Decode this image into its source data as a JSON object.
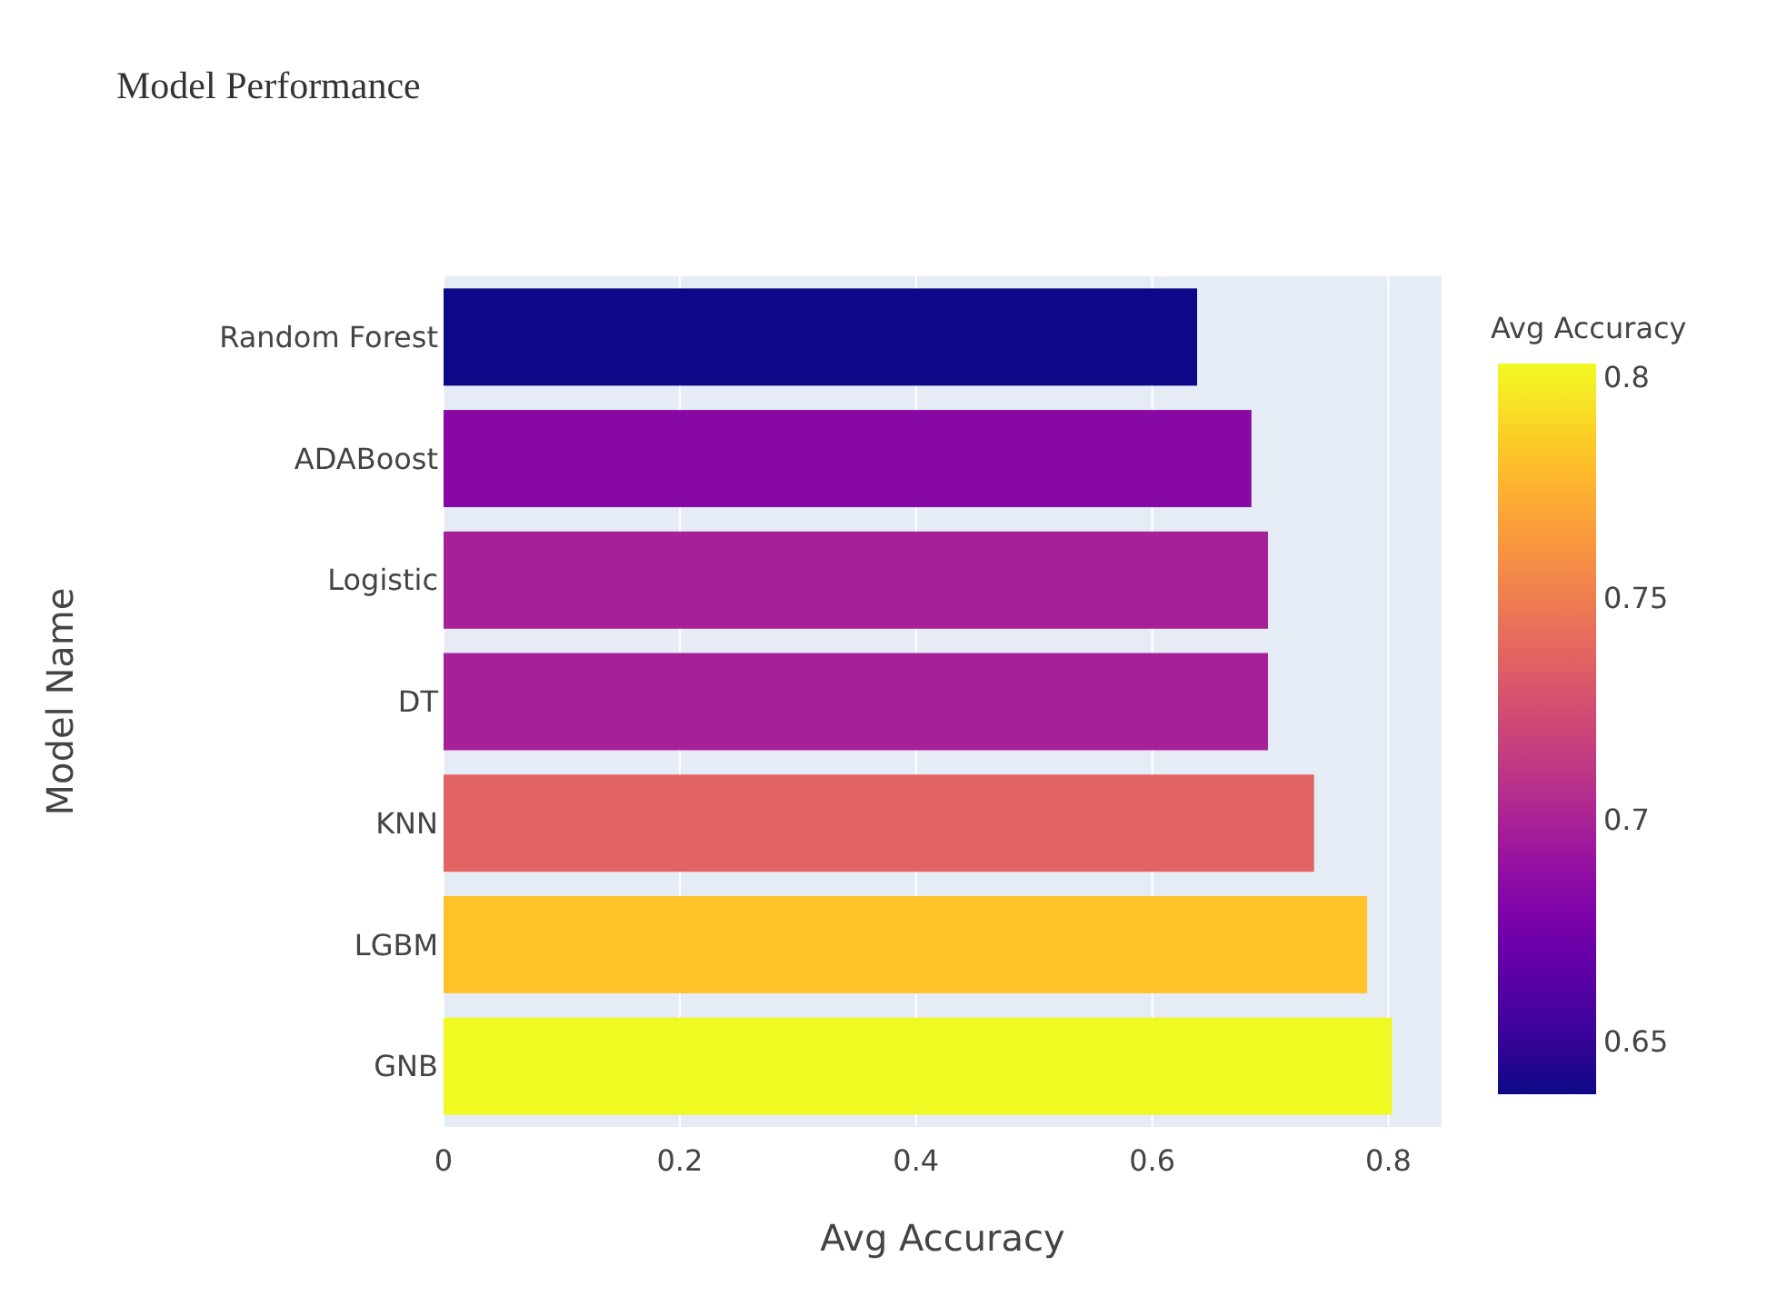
{
  "chart_data": {
    "type": "bar",
    "orientation": "horizontal",
    "title": "Model Performance",
    "xlabel": "Avg Accuracy",
    "ylabel": "Model Name",
    "clabel": "Avg Accuracy",
    "categories": [
      "Random Forest",
      "ADABoost",
      "Logistic",
      "DT",
      "KNN",
      "LGBM",
      "GNB"
    ],
    "values": [
      0.638,
      0.684,
      0.698,
      0.698,
      0.737,
      0.782,
      0.803
    ],
    "cvalues": [
      0.638,
      0.684,
      0.698,
      0.698,
      0.737,
      0.782,
      0.803
    ],
    "clim": [
      0.638,
      0.803
    ],
    "cticks": [
      0.65,
      0.7,
      0.75,
      0.8
    ],
    "xlim": [
      0,
      0.845
    ],
    "xticks": [
      0,
      0.2,
      0.4,
      0.6,
      0.8
    ],
    "grid": "x"
  }
}
